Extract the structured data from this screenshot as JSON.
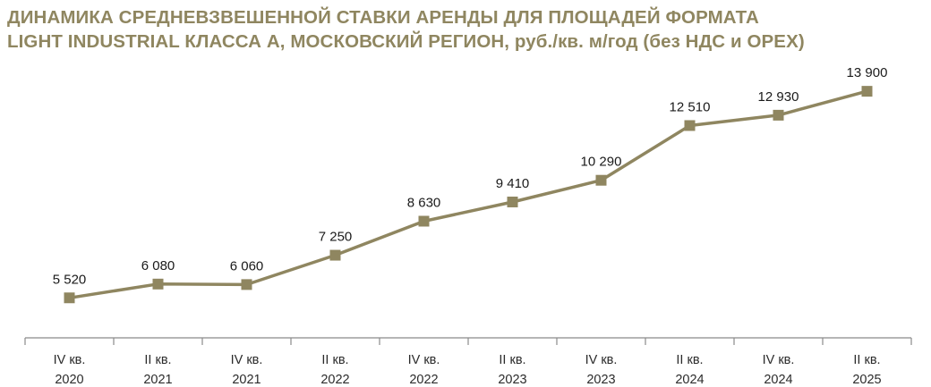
{
  "chart_data": {
    "type": "line",
    "title": [
      "ДИНАМИКА СРЕДНЕВЗВЕШЕННОЙ СТАВКИ АРЕНДЫ ДЛЯ ПЛОЩАДЕЙ ФОРМАТА",
      "LIGHT INDUSTRIAL КЛАССА А, МОСКОВСКИЙ РЕГИОН, руб./кв. м/год (без НДС и OPEX)"
    ],
    "categories": [
      [
        "IV кв.",
        "2020"
      ],
      [
        "II кв.",
        "2021"
      ],
      [
        "IV кв.",
        "2021"
      ],
      [
        "II кв.",
        "2022"
      ],
      [
        "IV кв.",
        "2022"
      ],
      [
        "II кв.",
        "2023"
      ],
      [
        "IV кв.",
        "2023"
      ],
      [
        "II кв.",
        "2024"
      ],
      [
        "IV кв.",
        "2024"
      ],
      [
        "II кв.",
        "2025"
      ]
    ],
    "values": [
      5520,
      6080,
      6060,
      7250,
      8630,
      9410,
      10290,
      12510,
      12930,
      13900
    ],
    "value_labels": [
      "5 520",
      "6 080",
      "6 060",
      "7 250",
      "8 630",
      "9 410",
      "10 290",
      "12 510",
      "12 930",
      "13 900"
    ],
    "ylim": [
      0,
      15000
    ],
    "grid": false,
    "line_color": "#8f8660",
    "marker_color": "#8f8660",
    "axis_color": "#8a8a8a"
  }
}
